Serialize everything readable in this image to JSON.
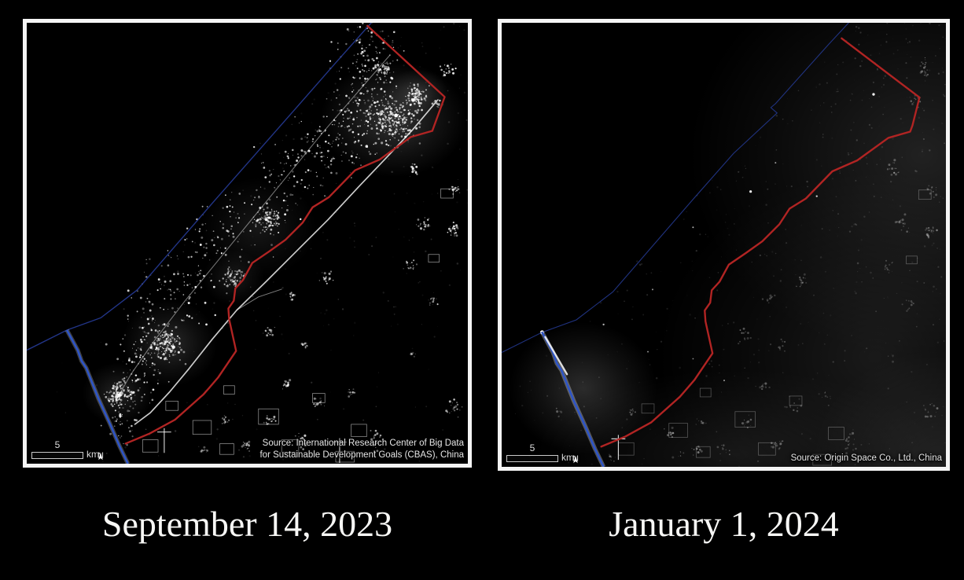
{
  "panels": [
    {
      "id": "before",
      "caption": "September 14, 2023",
      "source_lines": [
        "Source: International Research Center of Big Data",
        "for Sustainable Development Goals (CBAS), China"
      ],
      "scale": {
        "value": "5",
        "unit": "km"
      },
      "north_label": "N"
    },
    {
      "id": "after",
      "caption": "January 1, 2024",
      "source_lines": [
        "Source: Origin Space Co., Ltd., China"
      ],
      "scale": {
        "value": "5",
        "unit": "km"
      },
      "north_label": "N"
    }
  ],
  "colors": {
    "background": "#000000",
    "panel_border": "#f5f5f5",
    "border_red": "#b12423",
    "coastline_blue": "#24388f",
    "egypt_border_blue": "#2e55c8",
    "caption_text": "#f7f7f5",
    "source_text": "#e6e6e6",
    "lights_white": "#ffffff"
  }
}
